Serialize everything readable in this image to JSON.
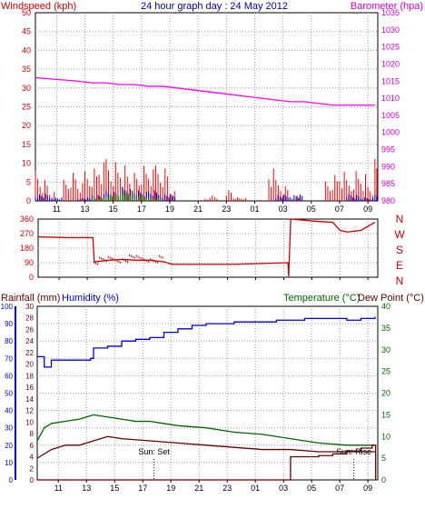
{
  "chart_data": [
    {
      "panel": "wind-baro",
      "type": "line",
      "title": "24 hour graph day : 24 May 2012",
      "ylabel_left": "Windspeed (kph)",
      "ylabel_right": "Barometer (hpa)",
      "x_ticks": [
        "11",
        "13",
        "15",
        "17",
        "19",
        "21",
        "23",
        "01",
        "03",
        "05",
        "07",
        "09"
      ],
      "ylim_left": [
        0,
        50
      ],
      "y_ticks_left": [
        "0",
        "5",
        "10",
        "15",
        "20",
        "25",
        "30",
        "35",
        "40",
        "45",
        "50"
      ],
      "ylim_right": [
        980,
        1035
      ],
      "y_ticks_right": [
        "980",
        "985",
        "990",
        "995",
        "1000",
        "1005",
        "1010",
        "1015",
        "1020",
        "1025",
        "1030",
        "1035"
      ],
      "grid": true,
      "series": [
        {
          "name": "Barometer",
          "color": "#ff00ff",
          "x": [
            9.0,
            10.5,
            12.0,
            13.0,
            14.0,
            15.0,
            16.0,
            17.0,
            18.0,
            19.0,
            20.0,
            21.0,
            22.0,
            23.0,
            24.0,
            25.0,
            26.0,
            27.0,
            28.0,
            29.0,
            30.0,
            31.0,
            32.0,
            33.0
          ],
          "values": [
            1016.0,
            1015.5,
            1015.0,
            1014.5,
            1014.5,
            1014.0,
            1014.0,
            1013.5,
            1013.5,
            1013.0,
            1012.5,
            1012.0,
            1011.5,
            1011.0,
            1010.5,
            1010.0,
            1009.5,
            1009.0,
            1009.0,
            1008.5,
            1008.0,
            1008.0,
            1008.0,
            1008.0
          ]
        },
        {
          "name": "Wind gust",
          "color": "#ff0000",
          "x": [
            9.0,
            9.5,
            10.0,
            10.5,
            11.0,
            11.5,
            12.0,
            12.5,
            13.0,
            13.5,
            14.0,
            14.5,
            15.0,
            15.5,
            16.0,
            16.5,
            17.0,
            17.5,
            18.0,
            18.5,
            19.0,
            20.0,
            21.0,
            21.5,
            22.0,
            22.5,
            23.0,
            24.0,
            25.0,
            25.5,
            26.0,
            26.5,
            27.0,
            27.5,
            28.0,
            28.5,
            29.0,
            29.5,
            30.0,
            30.5,
            31.0,
            31.5,
            32.0,
            32.5,
            33.0
          ],
          "values": [
            10,
            7,
            3,
            0,
            6,
            8,
            5,
            9,
            10,
            12,
            14,
            13,
            12,
            9,
            8,
            10,
            9,
            11,
            10,
            3,
            0,
            0,
            1,
            2,
            0,
            3,
            1,
            0,
            0,
            10,
            7,
            5,
            0,
            2,
            0,
            0,
            0,
            6,
            8,
            9,
            7,
            10,
            9,
            5,
            12
          ]
        },
        {
          "name": "Wind average",
          "color": "#0000cc",
          "x": [
            9.0,
            10.0,
            11.0,
            12.0,
            13.0,
            14.0,
            15.0,
            16.0,
            17.0,
            18.0,
            19.0,
            25.0,
            26.0,
            27.0,
            28.0,
            30.0,
            31.0,
            32.0,
            33.0
          ],
          "values": [
            2,
            1,
            0,
            1,
            2,
            3,
            4,
            3,
            3,
            2,
            0,
            0,
            2,
            2,
            0,
            0,
            2,
            1,
            2
          ]
        },
        {
          "name": "Wind low",
          "color": "#009900",
          "x": [
            13.0,
            14.0,
            15.0,
            16.0,
            17.0,
            18.0
          ],
          "values": [
            1,
            2,
            3,
            2,
            1,
            0
          ]
        }
      ]
    },
    {
      "panel": "wind-direction",
      "type": "line",
      "x_ticks": [
        "11",
        "13",
        "15",
        "17",
        "19",
        "21",
        "23",
        "01",
        "03",
        "05",
        "07",
        "09"
      ],
      "ylim": [
        0,
        360
      ],
      "y_ticks": [
        "0",
        "90",
        "180",
        "270",
        "360"
      ],
      "y_ticks_right": [
        "N",
        "W",
        "S",
        "E",
        "N"
      ],
      "grid": true,
      "series": [
        {
          "name": "Wind direction",
          "color": "#cc0000",
          "x": [
            9.0,
            11.0,
            12.0,
            12.9,
            13.0,
            14.0,
            15.0,
            16.0,
            17.0,
            18.0,
            18.5,
            19.0,
            21.0,
            23.0,
            25.0,
            26.8,
            26.85,
            27.0,
            29.0,
            30.0,
            30.5,
            31.0,
            32.0,
            33.0
          ],
          "values": [
            250,
            245,
            245,
            245,
            95,
            105,
            110,
            105,
            105,
            95,
            80,
            80,
            80,
            80,
            85,
            90,
            5,
            360,
            345,
            340,
            290,
            280,
            290,
            340
          ]
        }
      ]
    },
    {
      "panel": "rain-humidity-temp",
      "type": "line",
      "labels": {
        "rainfall": "Rainfall (mm)",
        "humidity": "Humidity (%)",
        "temperature": "Temperature (°C)",
        "dewpoint": "Dew Point (°C)"
      },
      "x_ticks": [
        "11",
        "13",
        "15",
        "17",
        "19",
        "21",
        "23",
        "01",
        "03",
        "05",
        "07",
        "09"
      ],
      "ylim_humidity": [
        0,
        100
      ],
      "y_ticks_humidity": [
        "0",
        "10",
        "20",
        "30",
        "40",
        "50",
        "60",
        "70",
        "80",
        "90",
        "100"
      ],
      "ylim_rain": [
        0,
        30
      ],
      "y_ticks_rain": [
        "0",
        "2",
        "4",
        "6",
        "8",
        "10",
        "12",
        "14",
        "16",
        "18",
        "20",
        "22",
        "24",
        "26",
        "28",
        "30"
      ],
      "ylim_temp": [
        0,
        40
      ],
      "y_ticks_temp": [
        "0",
        "5",
        "10",
        "15",
        "20",
        "25",
        "30",
        "35",
        "40"
      ],
      "annotations": [
        "Sun: Set",
        "Sun: Rise"
      ],
      "annotation_x": [
        17.3,
        31.5
      ],
      "grid": true,
      "series": [
        {
          "name": "Humidity",
          "color": "#0000cc",
          "x": [
            9.0,
            9.5,
            10.0,
            11.0,
            12.0,
            12.8,
            13.0,
            14.0,
            15.0,
            16.0,
            17.0,
            18.0,
            19.0,
            20.0,
            21.0,
            22.0,
            23.0,
            24.0,
            26.0,
            28.0,
            30.0,
            31.0,
            32.0,
            33.0
          ],
          "values": [
            71,
            65,
            69,
            69,
            69,
            70,
            76,
            77,
            80,
            81,
            82,
            85,
            87,
            89,
            90,
            90,
            91,
            91,
            92,
            93,
            93,
            92,
            93,
            94
          ]
        },
        {
          "name": "Temperature",
          "color": "#006600",
          "x": [
            9.0,
            9.5,
            10.0,
            11.0,
            12.0,
            13.0,
            14.0,
            15.0,
            16.0,
            17.0,
            18.0,
            19.0,
            21.0,
            23.0,
            25.0,
            27.0,
            29.0,
            31.0,
            33.0
          ],
          "values": [
            9,
            12,
            13,
            13.5,
            14,
            15,
            14.5,
            14,
            13.5,
            13.5,
            13,
            12.5,
            12,
            11,
            10.5,
            9.5,
            8.5,
            8,
            8
          ]
        },
        {
          "name": "Dew Point",
          "color": "#660000",
          "x": [
            9.0,
            10.0,
            11.0,
            12.0,
            13.0,
            14.0,
            15.0,
            17.0,
            19.0,
            21.0,
            23.0,
            25.0,
            27.0,
            29.0,
            31.0,
            33.0
          ],
          "values": [
            5,
            7,
            8,
            8,
            9,
            10,
            9.5,
            9,
            8.5,
            8,
            7.5,
            7,
            7,
            6.5,
            6.5,
            6.5
          ]
        },
        {
          "name": "Rainfall",
          "color": "#660000",
          "x": [
            9.0,
            26.0,
            26.5,
            26.9,
            27.0,
            29.0,
            30.0,
            31.0,
            32.0,
            32.8,
            33.0,
            33.05
          ],
          "values": [
            0,
            0,
            0,
            0,
            4,
            4.2,
            4.5,
            5,
            5.5,
            6,
            6,
            0
          ]
        }
      ]
    }
  ]
}
